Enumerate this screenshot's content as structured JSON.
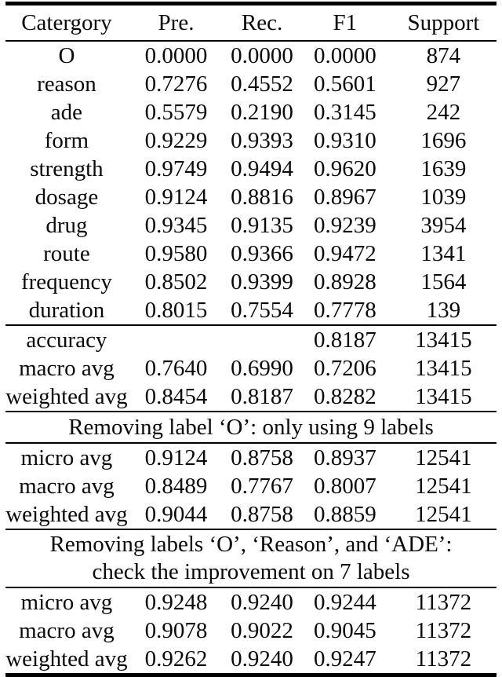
{
  "table": {
    "columns": [
      "Catergory",
      "Pre.",
      "Rec.",
      "F1",
      "Support"
    ],
    "groups": [
      {
        "type": "rows",
        "rows": [
          [
            "O",
            "0.0000",
            "0.0000",
            "0.0000",
            "874"
          ],
          [
            "reason",
            "0.7276",
            "0.4552",
            "0.5601",
            "927"
          ],
          [
            "ade",
            "0.5579",
            "0.2190",
            "0.3145",
            "242"
          ],
          [
            "form",
            "0.9229",
            "0.9393",
            "0.9310",
            "1696"
          ],
          [
            "strength",
            "0.9749",
            "0.9494",
            "0.9620",
            "1639"
          ],
          [
            "dosage",
            "0.9124",
            "0.8816",
            "0.8967",
            "1039"
          ],
          [
            "drug",
            "0.9345",
            "0.9135",
            "0.9239",
            "3954"
          ],
          [
            "route",
            "0.9580",
            "0.9366",
            "0.9472",
            "1341"
          ],
          [
            "frequency",
            "0.8502",
            "0.9399",
            "0.8928",
            "1564"
          ],
          [
            "duration",
            "0.8015",
            "0.7554",
            "0.7778",
            "139"
          ]
        ]
      },
      {
        "type": "rows",
        "rows": [
          [
            "accuracy",
            "",
            "",
            "0.8187",
            "13415"
          ],
          [
            "macro avg",
            "0.7640",
            "0.6990",
            "0.7206",
            "13415"
          ],
          [
            "weighted avg",
            "0.8454",
            "0.8187",
            "0.8282",
            "13415"
          ]
        ]
      },
      {
        "type": "section",
        "lines": [
          "Removing label ‘O’: only using 9 labels"
        ]
      },
      {
        "type": "rows",
        "rows": [
          [
            "micro avg",
            "0.9124",
            "0.8758",
            "0.8937",
            "12541"
          ],
          [
            "macro avg",
            "0.8489",
            "0.7767",
            "0.8007",
            "12541"
          ],
          [
            "weighted avg",
            "0.9044",
            "0.8758",
            "0.8859",
            "12541"
          ]
        ]
      },
      {
        "type": "section",
        "lines": [
          "Removing labels ‘O’, ‘Reason’, and ‘ADE’:",
          "check the improvement on 7 labels"
        ]
      },
      {
        "type": "rows",
        "rows": [
          [
            "micro avg",
            "0.9248",
            "0.9240",
            "0.9244",
            "11372"
          ],
          [
            "macro avg",
            "0.9078",
            "0.9022",
            "0.9045",
            "11372"
          ],
          [
            "weighted avg",
            "0.9262",
            "0.9240",
            "0.9247",
            "11372"
          ]
        ]
      }
    ]
  }
}
